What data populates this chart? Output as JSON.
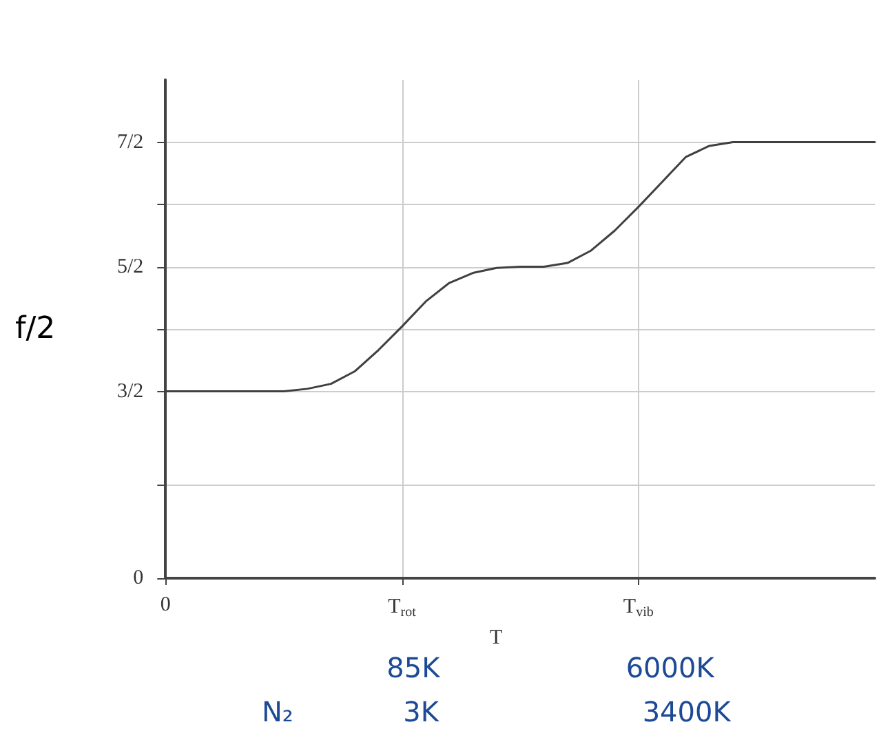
{
  "chart_data": {
    "type": "line",
    "xlabel": "T",
    "ylabel": "f/2",
    "categories": [
      "0",
      null,
      null,
      null,
      null,
      null,
      null,
      null,
      null,
      null,
      "T$_{rot}$",
      null,
      null,
      null,
      null,
      null,
      null,
      null,
      null,
      null,
      "T$_{vib}$",
      null,
      null,
      null,
      null,
      null,
      null,
      null,
      null,
      null,
      null
    ],
    "series": [
      {
        "color": "#404040",
        "values": [
          1.5,
          1.5,
          1.5,
          1.5,
          1.5,
          1.5,
          1.52,
          1.56,
          1.66,
          1.83,
          2.02,
          2.22,
          2.37,
          2.45,
          2.49,
          2.5,
          2.5,
          2.53,
          2.63,
          2.79,
          2.98,
          3.18,
          3.38,
          3.47,
          3.5,
          3.5,
          3.5,
          3.5,
          3.5,
          3.5,
          3.5
        ]
      }
    ],
    "ylim": [
      0,
      4
    ],
    "yticks": [
      0,
      {
        "value": 0.75,
        "label": null
      },
      {
        "value": 1.5,
        "label": "3/2"
      },
      {
        "value": 2,
        "label": null
      },
      {
        "value": 2.5,
        "label": "5/2"
      },
      {
        "value": 3,
        "label": null
      },
      {
        "value": 3.5,
        "label": "7/2"
      }
    ],
    "grid": true,
    "marker": "none",
    "line_style": "solid",
    "annotations": [
      "85K",
      "6000K",
      "N₂",
      "3K",
      "3400K"
    ]
  }
}
